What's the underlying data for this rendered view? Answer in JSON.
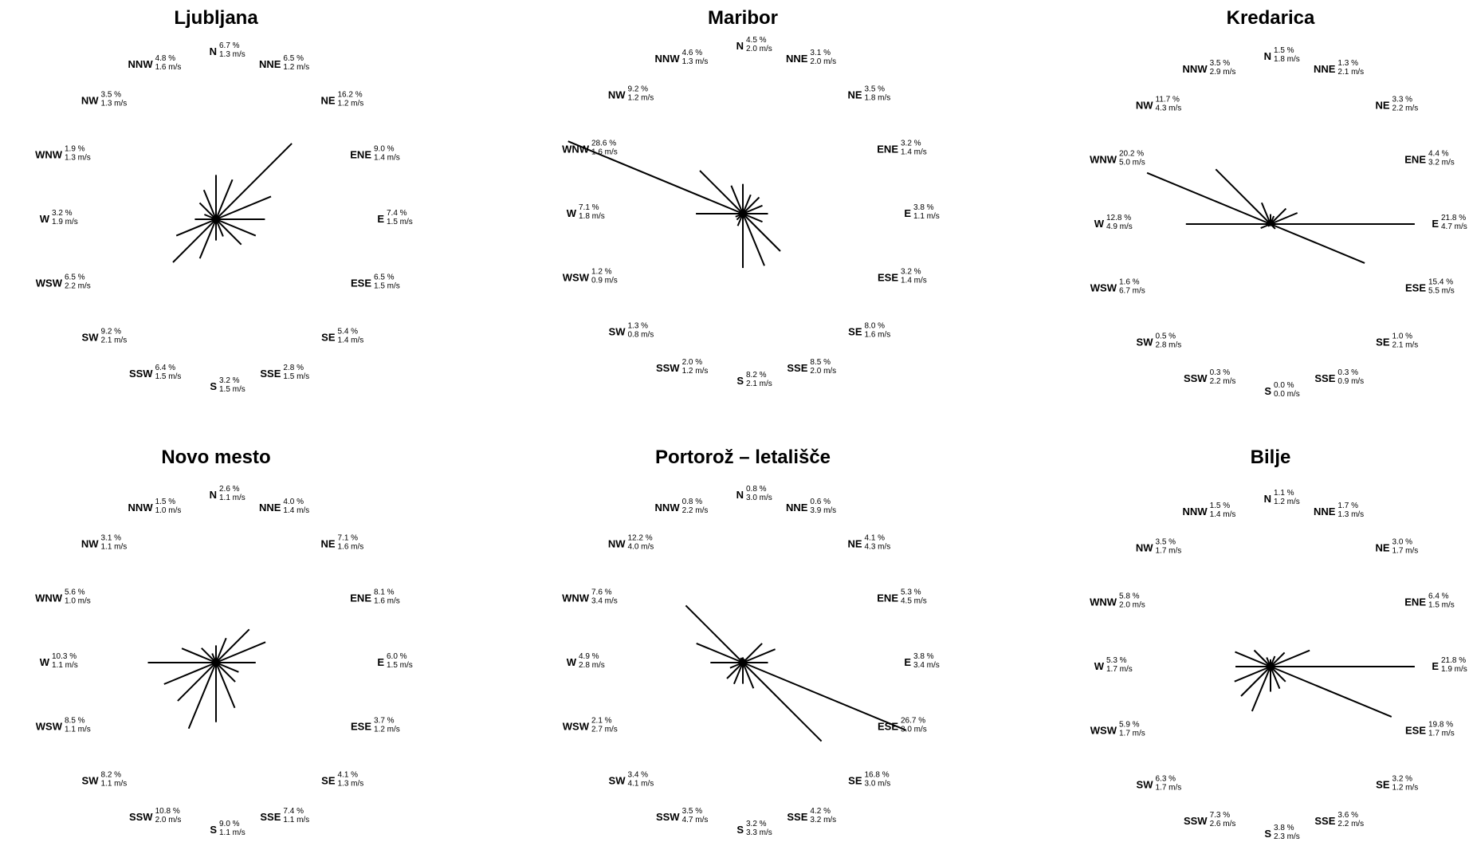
{
  "chart_data": [
    {
      "type": "wind-rose",
      "title": "Ljubljana",
      "directions": [
        {
          "dir": "N",
          "freq": "6.7 %",
          "speed": "1.3 m/s",
          "value": 6.7
        },
        {
          "dir": "NNE",
          "freq": "6.5 %",
          "speed": "1.2 m/s",
          "value": 6.5
        },
        {
          "dir": "NE",
          "freq": "16.2 %",
          "speed": "1.2 m/s",
          "value": 16.2
        },
        {
          "dir": "ENE",
          "freq": "9.0 %",
          "speed": "1.4 m/s",
          "value": 9.0
        },
        {
          "dir": "E",
          "freq": "7.4 %",
          "speed": "1.5 m/s",
          "value": 7.4
        },
        {
          "dir": "ESE",
          "freq": "6.5 %",
          "speed": "1.5 m/s",
          "value": 6.5
        },
        {
          "dir": "SE",
          "freq": "5.4 %",
          "speed": "1.4 m/s",
          "value": 5.4
        },
        {
          "dir": "SSE",
          "freq": "2.8 %",
          "speed": "1.5 m/s",
          "value": 2.8
        },
        {
          "dir": "S",
          "freq": "3.2 %",
          "speed": "1.5 m/s",
          "value": 3.2
        },
        {
          "dir": "SSW",
          "freq": "6.4 %",
          "speed": "1.5 m/s",
          "value": 6.4
        },
        {
          "dir": "SW",
          "freq": "9.2 %",
          "speed": "2.1 m/s",
          "value": 9.2
        },
        {
          "dir": "WSW",
          "freq": "6.5 %",
          "speed": "2.2 m/s",
          "value": 6.5
        },
        {
          "dir": "W",
          "freq": "3.2 %",
          "speed": "1.9 m/s",
          "value": 3.2
        },
        {
          "dir": "WNW",
          "freq": "1.9 %",
          "speed": "1.3 m/s",
          "value": 1.9
        },
        {
          "dir": "NW",
          "freq": "3.5 %",
          "speed": "1.3 m/s",
          "value": 3.5
        },
        {
          "dir": "NNW",
          "freq": "4.8 %",
          "speed": "1.6 m/s",
          "value": 4.8
        }
      ]
    },
    {
      "type": "wind-rose",
      "title": "Maribor",
      "directions": [
        {
          "dir": "N",
          "freq": "4.5 %",
          "speed": "2.0 m/s",
          "value": 4.5
        },
        {
          "dir": "NNE",
          "freq": "3.1 %",
          "speed": "2.0 m/s",
          "value": 3.1
        },
        {
          "dir": "NE",
          "freq": "3.5 %",
          "speed": "1.8 m/s",
          "value": 3.5
        },
        {
          "dir": "ENE",
          "freq": "3.2 %",
          "speed": "1.4 m/s",
          "value": 3.2
        },
        {
          "dir": "E",
          "freq": "3.8 %",
          "speed": "1.1 m/s",
          "value": 3.8
        },
        {
          "dir": "ESE",
          "freq": "3.2 %",
          "speed": "1.4 m/s",
          "value": 3.2
        },
        {
          "dir": "SE",
          "freq": "8.0 %",
          "speed": "1.6 m/s",
          "value": 8.0
        },
        {
          "dir": "SSE",
          "freq": "8.5 %",
          "speed": "2.0 m/s",
          "value": 8.5
        },
        {
          "dir": "S",
          "freq": "8.2 %",
          "speed": "2.1 m/s",
          "value": 8.2
        },
        {
          "dir": "SSW",
          "freq": "2.0 %",
          "speed": "1.2 m/s",
          "value": 2.0
        },
        {
          "dir": "SW",
          "freq": "1.3 %",
          "speed": "0.8 m/s",
          "value": 1.3
        },
        {
          "dir": "WSW",
          "freq": "1.2 %",
          "speed": "0.9 m/s",
          "value": 1.2
        },
        {
          "dir": "W",
          "freq": "7.1 %",
          "speed": "1.8 m/s",
          "value": 7.1
        },
        {
          "dir": "WNW",
          "freq": "28.6 %",
          "speed": "1.6 m/s",
          "value": 28.6
        },
        {
          "dir": "NW",
          "freq": "9.2 %",
          "speed": "1.2 m/s",
          "value": 9.2
        },
        {
          "dir": "NNW",
          "freq": "4.6 %",
          "speed": "1.3 m/s",
          "value": 4.6
        }
      ]
    },
    {
      "type": "wind-rose",
      "title": "Kredarica",
      "directions": [
        {
          "dir": "N",
          "freq": "1.5 %",
          "speed": "1.8 m/s",
          "value": 1.5
        },
        {
          "dir": "NNE",
          "freq": "1.3 %",
          "speed": "2.1 m/s",
          "value": 1.3
        },
        {
          "dir": "NE",
          "freq": "3.3 %",
          "speed": "2.2 m/s",
          "value": 3.3
        },
        {
          "dir": "ENE",
          "freq": "4.4 %",
          "speed": "3.2 m/s",
          "value": 4.4
        },
        {
          "dir": "E",
          "freq": "21.8 %",
          "speed": "4.7 m/s",
          "value": 21.8
        },
        {
          "dir": "ESE",
          "freq": "15.4 %",
          "speed": "5.5 m/s",
          "value": 15.4
        },
        {
          "dir": "SE",
          "freq": "1.0 %",
          "speed": "2.1 m/s",
          "value": 1.0
        },
        {
          "dir": "SSE",
          "freq": "0.3 %",
          "speed": "0.9 m/s",
          "value": 0.3
        },
        {
          "dir": "S",
          "freq": "0.0 %",
          "speed": "0.0 m/s",
          "value": 0.0
        },
        {
          "dir": "SSW",
          "freq": "0.3 %",
          "speed": "2.2 m/s",
          "value": 0.3
        },
        {
          "dir": "SW",
          "freq": "0.5 %",
          "speed": "2.8 m/s",
          "value": 0.5
        },
        {
          "dir": "WSW",
          "freq": "1.6 %",
          "speed": "6.7 m/s",
          "value": 1.6
        },
        {
          "dir": "W",
          "freq": "12.8 %",
          "speed": "4.9 m/s",
          "value": 12.8
        },
        {
          "dir": "WNW",
          "freq": "20.2 %",
          "speed": "5.0 m/s",
          "value": 20.2
        },
        {
          "dir": "NW",
          "freq": "11.7 %",
          "speed": "4.3 m/s",
          "value": 11.7
        },
        {
          "dir": "NNW",
          "freq": "3.5 %",
          "speed": "2.9 m/s",
          "value": 3.5
        }
      ]
    },
    {
      "type": "wind-rose",
      "title": "Novo mesto",
      "directions": [
        {
          "dir": "N",
          "freq": "2.6 %",
          "speed": "1.1 m/s",
          "value": 2.6
        },
        {
          "dir": "NNE",
          "freq": "4.0 %",
          "speed": "1.4 m/s",
          "value": 4.0
        },
        {
          "dir": "NE",
          "freq": "7.1 %",
          "speed": "1.6 m/s",
          "value": 7.1
        },
        {
          "dir": "ENE",
          "freq": "8.1 %",
          "speed": "1.6 m/s",
          "value": 8.1
        },
        {
          "dir": "E",
          "freq": "6.0 %",
          "speed": "1.5 m/s",
          "value": 6.0
        },
        {
          "dir": "ESE",
          "freq": "3.7 %",
          "speed": "1.2 m/s",
          "value": 3.7
        },
        {
          "dir": "SE",
          "freq": "4.1 %",
          "speed": "1.3 m/s",
          "value": 4.1
        },
        {
          "dir": "SSE",
          "freq": "7.4 %",
          "speed": "1.1 m/s",
          "value": 7.4
        },
        {
          "dir": "S",
          "freq": "9.0 %",
          "speed": "1.1 m/s",
          "value": 9.0
        },
        {
          "dir": "SSW",
          "freq": "10.8 %",
          "speed": "2.0 m/s",
          "value": 10.8
        },
        {
          "dir": "SW",
          "freq": "8.2 %",
          "speed": "1.1 m/s",
          "value": 8.2
        },
        {
          "dir": "WSW",
          "freq": "8.5 %",
          "speed": "1.1 m/s",
          "value": 8.5
        },
        {
          "dir": "W",
          "freq": "10.3 %",
          "speed": "1.1 m/s",
          "value": 10.3
        },
        {
          "dir": "WNW",
          "freq": "5.6 %",
          "speed": "1.0 m/s",
          "value": 5.6
        },
        {
          "dir": "NW",
          "freq": "3.1 %",
          "speed": "1.1 m/s",
          "value": 3.1
        },
        {
          "dir": "NNW",
          "freq": "1.5 %",
          "speed": "1.0 m/s",
          "value": 1.5
        }
      ]
    },
    {
      "type": "wind-rose",
      "title": "Portorož – letališče",
      "directions": [
        {
          "dir": "N",
          "freq": "0.8 %",
          "speed": "3.0 m/s",
          "value": 0.8
        },
        {
          "dir": "NNE",
          "freq": "0.6 %",
          "speed": "3.9 m/s",
          "value": 0.6
        },
        {
          "dir": "NE",
          "freq": "4.1 %",
          "speed": "4.3 m/s",
          "value": 4.1
        },
        {
          "dir": "ENE",
          "freq": "5.3 %",
          "speed": "4.5 m/s",
          "value": 5.3
        },
        {
          "dir": "E",
          "freq": "3.8 %",
          "speed": "3.4 m/s",
          "value": 3.8
        },
        {
          "dir": "ESE",
          "freq": "26.7 %",
          "speed": "3.0 m/s",
          "value": 26.7
        },
        {
          "dir": "SE",
          "freq": "16.8 %",
          "speed": "3.0 m/s",
          "value": 16.8
        },
        {
          "dir": "SSE",
          "freq": "4.2 %",
          "speed": "3.2 m/s",
          "value": 4.2
        },
        {
          "dir": "S",
          "freq": "3.2 %",
          "speed": "3.3 m/s",
          "value": 3.2
        },
        {
          "dir": "SSW",
          "freq": "3.5 %",
          "speed": "4.7 m/s",
          "value": 3.5
        },
        {
          "dir": "SW",
          "freq": "3.4 %",
          "speed": "4.1 m/s",
          "value": 3.4
        },
        {
          "dir": "WSW",
          "freq": "2.1 %",
          "speed": "2.7 m/s",
          "value": 2.1
        },
        {
          "dir": "W",
          "freq": "4.9 %",
          "speed": "2.8 m/s",
          "value": 4.9
        },
        {
          "dir": "WNW",
          "freq": "7.6 %",
          "speed": "3.4 m/s",
          "value": 7.6
        },
        {
          "dir": "NW",
          "freq": "12.2 %",
          "speed": "4.0 m/s",
          "value": 12.2
        },
        {
          "dir": "NNW",
          "freq": "0.8 %",
          "speed": "2.2 m/s",
          "value": 0.8
        }
      ]
    },
    {
      "type": "wind-rose",
      "title": "Bilje",
      "directions": [
        {
          "dir": "N",
          "freq": "1.1 %",
          "speed": "1.2 m/s",
          "value": 1.1
        },
        {
          "dir": "NNE",
          "freq": "1.7 %",
          "speed": "1.3 m/s",
          "value": 1.7
        },
        {
          "dir": "NE",
          "freq": "3.0 %",
          "speed": "1.7 m/s",
          "value": 3.0
        },
        {
          "dir": "ENE",
          "freq": "6.4 %",
          "speed": "1.5 m/s",
          "value": 6.4
        },
        {
          "dir": "E",
          "freq": "21.8 %",
          "speed": "1.9 m/s",
          "value": 21.8
        },
        {
          "dir": "ESE",
          "freq": "19.8 %",
          "speed": "1.7 m/s",
          "value": 19.8
        },
        {
          "dir": "SE",
          "freq": "3.2 %",
          "speed": "1.2 m/s",
          "value": 3.2
        },
        {
          "dir": "SSE",
          "freq": "3.6 %",
          "speed": "2.2 m/s",
          "value": 3.6
        },
        {
          "dir": "S",
          "freq": "3.8 %",
          "speed": "2.3 m/s",
          "value": 3.8
        },
        {
          "dir": "SSW",
          "freq": "7.3 %",
          "speed": "2.6 m/s",
          "value": 7.3
        },
        {
          "dir": "SW",
          "freq": "6.3 %",
          "speed": "1.7 m/s",
          "value": 6.3
        },
        {
          "dir": "WSW",
          "freq": "5.9 %",
          "speed": "1.7 m/s",
          "value": 5.9
        },
        {
          "dir": "W",
          "freq": "5.3 %",
          "speed": "1.7 m/s",
          "value": 5.3
        },
        {
          "dir": "WNW",
          "freq": "5.8 %",
          "speed": "2.0 m/s",
          "value": 5.8
        },
        {
          "dir": "NW",
          "freq": "3.5 %",
          "speed": "1.7 m/s",
          "value": 3.5
        },
        {
          "dir": "NNW",
          "freq": "1.5 %",
          "speed": "1.4 m/s",
          "value": 1.5
        }
      ]
    }
  ]
}
